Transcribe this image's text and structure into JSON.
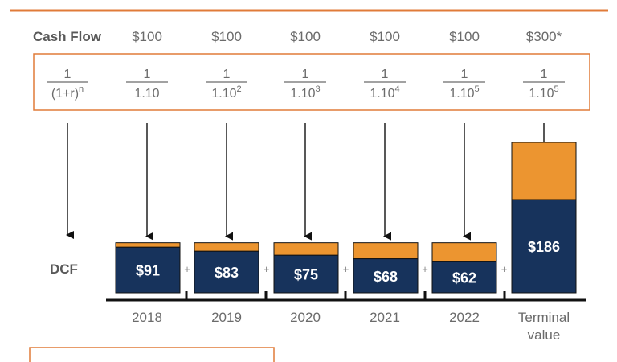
{
  "colors": {
    "accent": "#E07B39",
    "orange_fill": "#EC9530",
    "navy": "#17335C",
    "text_gray": "#6B6B6B",
    "label_gray": "#595959",
    "line": "#111111"
  },
  "header": {
    "row_label": "Cash Flow",
    "cash_flows": [
      "$100",
      "$100",
      "$100",
      "$100",
      "$100",
      "$300*"
    ]
  },
  "formula": {
    "general": {
      "numerator": "1",
      "denominator": "(1+r)",
      "exponent": "n"
    },
    "terms": [
      {
        "numerator": "1",
        "denominator": "1.10",
        "exponent": ""
      },
      {
        "numerator": "1",
        "denominator": "1.10",
        "exponent": "2"
      },
      {
        "numerator": "1",
        "denominator": "1.10",
        "exponent": "3"
      },
      {
        "numerator": "1",
        "denominator": "1.10",
        "exponent": "4"
      },
      {
        "numerator": "1",
        "denominator": "1.10",
        "exponent": "5"
      },
      {
        "numerator": "1",
        "denominator": "1.10",
        "exponent": "5"
      }
    ]
  },
  "chart_data": {
    "type": "bar",
    "row_label": "DCF",
    "categories": [
      "2018",
      "2019",
      "2020",
      "2021",
      "2022",
      "Terminal value"
    ],
    "nominal": [
      100,
      100,
      100,
      100,
      100,
      300
    ],
    "discounted": [
      91,
      83,
      75,
      68,
      62,
      186
    ],
    "value_labels": [
      "$91",
      "$83",
      "$75",
      "$68",
      "$62",
      "$186"
    ],
    "separator": "+"
  }
}
